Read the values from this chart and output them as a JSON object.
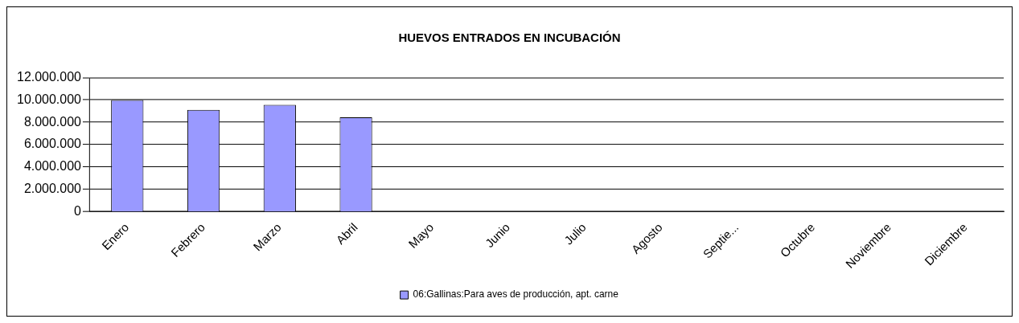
{
  "chart_data": {
    "type": "bar",
    "title": "HUEVOS ENTRADOS EN INCUBACIÓN",
    "categories": [
      "Enero",
      "Febrero",
      "Marzo",
      "Abril",
      "Mayo",
      "Junio",
      "Julio",
      "Agosto",
      "Septie...",
      "Octubre",
      "Noviembre",
      "Diciembre"
    ],
    "series": [
      {
        "name": "06:Gallinas:Para aves de producción, apt. carne",
        "color": "#9999ff",
        "values": [
          10000000,
          9110000,
          9560000,
          8440000,
          null,
          null,
          null,
          null,
          null,
          null,
          null,
          null
        ]
      }
    ],
    "ylim": [
      0,
      12000000
    ],
    "yticks": [
      {
        "value": 0,
        "label": "0"
      },
      {
        "value": 2000000,
        "label": "2.000.000"
      },
      {
        "value": 4000000,
        "label": "4.000.000"
      },
      {
        "value": 6000000,
        "label": "6.000.000"
      },
      {
        "value": 8000000,
        "label": "8.000.000"
      },
      {
        "value": 10000000,
        "label": "10.000.000"
      },
      {
        "value": 12000000,
        "label": "12.000.000"
      }
    ],
    "grid": "y",
    "legend": "bottom"
  }
}
